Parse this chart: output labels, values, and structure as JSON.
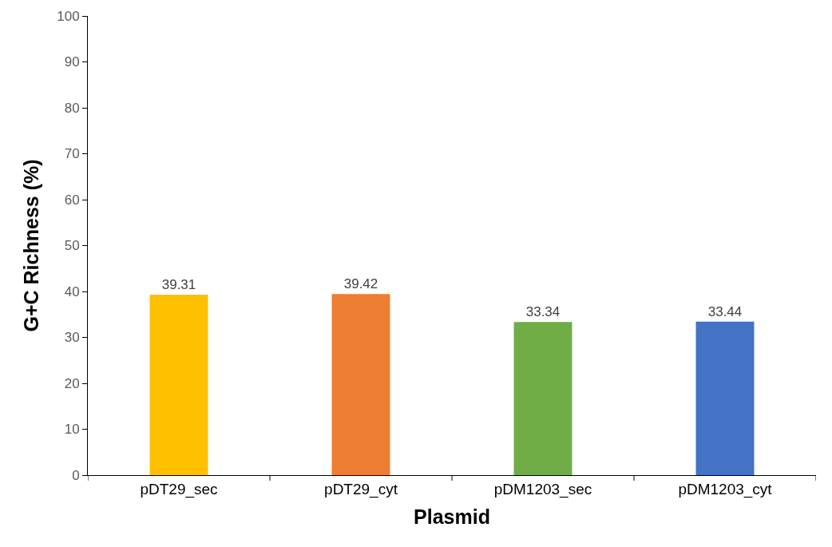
{
  "chart_data": {
    "type": "bar",
    "xlabel": "Plasmid",
    "ylabel": "G+C Richness (%)",
    "categories": [
      "pDT29_sec",
      "pDT29_cyt",
      "pDM1203_sec",
      "pDM1203_cyt"
    ],
    "values": [
      39.31,
      39.42,
      33.34,
      33.44
    ],
    "colors": [
      "#ffc000",
      "#ed7d31",
      "#70ad47",
      "#4472c4"
    ],
    "ylim": [
      0,
      100
    ],
    "yticks": [
      0,
      10,
      20,
      30,
      40,
      50,
      60,
      70,
      80,
      90,
      100
    ],
    "data_labels": true
  }
}
